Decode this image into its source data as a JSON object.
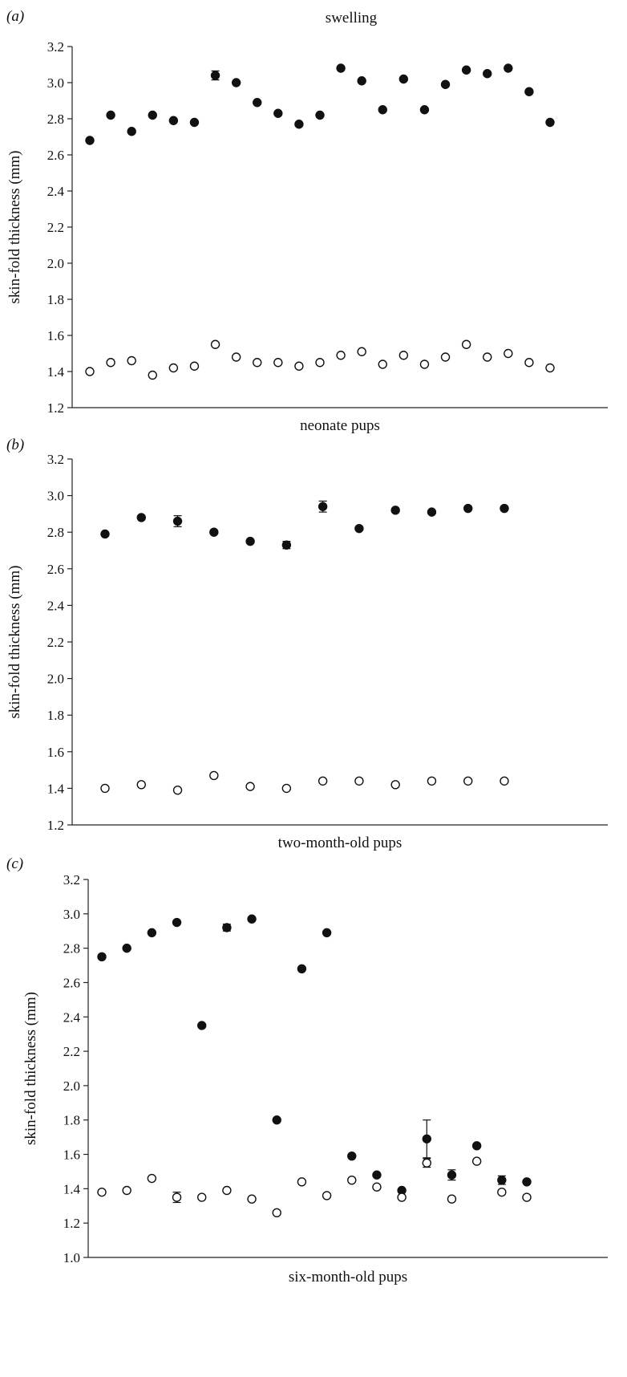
{
  "figure_title": "swelling",
  "chart_data": [
    {
      "type": "scatter",
      "panel_label": "(a)",
      "xlabel": "neonate pups",
      "ylabel": "skin-fold thickness (mm)",
      "ylim": [
        1.2,
        3.2
      ],
      "yticks": [
        1.2,
        1.4,
        1.6,
        1.8,
        2.0,
        2.2,
        2.4,
        2.6,
        2.8,
        3.0,
        3.2
      ],
      "grid": false,
      "series": [
        {
          "marker": "filled-circle",
          "values": [
            2.68,
            2.82,
            2.73,
            2.82,
            2.79,
            2.78,
            3.04,
            3.0,
            2.89,
            2.83,
            2.77,
            2.82,
            3.08,
            3.01,
            2.85,
            3.02,
            2.85,
            2.99,
            3.07,
            3.05,
            3.08,
            2.95,
            2.78
          ],
          "errors": [
            0.005,
            0.005,
            0.005,
            0.005,
            0.005,
            0.005,
            0.025,
            0.005,
            0.005,
            0.005,
            0.005,
            0.005,
            0.005,
            0.005,
            0.005,
            0.005,
            0.005,
            0.005,
            0.005,
            0.005,
            0.005,
            0.005,
            0.005
          ]
        },
        {
          "marker": "open-circle",
          "values": [
            1.4,
            1.45,
            1.46,
            1.38,
            1.42,
            1.43,
            1.55,
            1.48,
            1.45,
            1.45,
            1.43,
            1.45,
            1.49,
            1.51,
            1.44,
            1.49,
            1.44,
            1.48,
            1.55,
            1.48,
            1.5,
            1.45,
            1.42
          ],
          "errors": [
            0.005,
            0.005,
            0.005,
            0.005,
            0.005,
            0.005,
            0.005,
            0.005,
            0.005,
            0.005,
            0.005,
            0.005,
            0.005,
            0.005,
            0.005,
            0.005,
            0.005,
            0.005,
            0.005,
            0.005,
            0.005,
            0.005,
            0.005
          ]
        }
      ]
    },
    {
      "type": "scatter",
      "panel_label": "(b)",
      "xlabel": "two-month-old pups",
      "ylabel": "skin-fold thickness (mm)",
      "ylim": [
        1.2,
        3.2
      ],
      "yticks": [
        1.2,
        1.4,
        1.6,
        1.8,
        2.0,
        2.2,
        2.4,
        2.6,
        2.8,
        3.0,
        3.2
      ],
      "grid": false,
      "series": [
        {
          "marker": "filled-circle",
          "values": [
            2.79,
            2.88,
            2.86,
            2.8,
            2.75,
            2.73,
            2.94,
            2.82,
            2.92,
            2.91,
            2.93,
            2.93
          ],
          "errors": [
            0.005,
            0.005,
            0.03,
            0.005,
            0.005,
            0.02,
            0.03,
            0.005,
            0.005,
            0.005,
            0.005,
            0.005
          ]
        },
        {
          "marker": "open-circle",
          "values": [
            1.4,
            1.42,
            1.39,
            1.47,
            1.41,
            1.4,
            1.44,
            1.44,
            1.42,
            1.44,
            1.44,
            1.44
          ],
          "errors": [
            0.005,
            0.005,
            0.005,
            0.005,
            0.005,
            0.005,
            0.005,
            0.005,
            0.005,
            0.005,
            0.005,
            0.005
          ]
        }
      ]
    },
    {
      "type": "scatter",
      "panel_label": "(c)",
      "xlabel": "six-month-old pups",
      "ylabel": "skin-fold thickness (mm)",
      "ylim": [
        1.0,
        3.2
      ],
      "yticks": [
        1.0,
        1.2,
        1.4,
        1.6,
        1.8,
        2.0,
        2.2,
        2.4,
        2.6,
        2.8,
        3.0,
        3.2
      ],
      "grid": false,
      "series": [
        {
          "marker": "filled-circle",
          "values": [
            2.75,
            2.8,
            2.89,
            2.95,
            2.35,
            2.92,
            2.97,
            1.8,
            2.68,
            2.89,
            1.59,
            1.48,
            1.39,
            1.69,
            1.48,
            1.65,
            1.45,
            1.44
          ],
          "errors": [
            0.005,
            0.005,
            0.005,
            0.005,
            0.005,
            0.02,
            0.005,
            0.005,
            0.005,
            0.005,
            0.005,
            0.005,
            0.005,
            0.11,
            0.03,
            0.005,
            0.025,
            0.005
          ]
        },
        {
          "marker": "open-circle",
          "values": [
            1.38,
            1.39,
            1.46,
            1.35,
            1.35,
            1.39,
            1.34,
            1.26,
            1.44,
            1.36,
            1.45,
            1.41,
            1.35,
            1.55,
            1.34,
            1.56,
            1.38,
            1.35
          ],
          "errors": [
            0.005,
            0.005,
            0.005,
            0.03,
            0.005,
            0.005,
            0.005,
            0.005,
            0.005,
            0.005,
            0.005,
            0.005,
            0.005,
            0.025,
            0.005,
            0.005,
            0.005,
            0.005
          ]
        }
      ]
    }
  ]
}
